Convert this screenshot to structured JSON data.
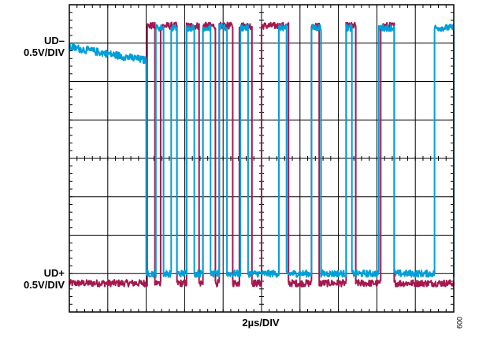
{
  "chart_data": {
    "type": "line",
    "title": "",
    "xlabel": "2µs/DIV",
    "ylabel": "",
    "grid": true,
    "divisions": {
      "x": 10,
      "y": 8
    },
    "x_range_us": [
      0,
      20
    ],
    "channels": [
      {
        "label_line1": "UD–",
        "label_line2": "0.5V/DIV",
        "color": "#009fd8"
      },
      {
        "label_line1": "UD+",
        "label_line2": "0.5V/DIV",
        "color": "#a4184e"
      }
    ],
    "series": [
      {
        "color": "#a4184e",
        "idle_level_div": 0.75,
        "high_level_div": 7.45,
        "transitions_us": [
          4.05,
          4.45,
          4.75,
          5.6,
          6.1,
          6.75,
          6.95,
          7.6,
          7.8,
          8.5,
          8.85,
          9.5,
          10.0,
          11.4,
          12.6,
          13.0,
          14.4,
          14.9,
          16.2,
          16.9
        ]
      },
      {
        "color": "#009fd8",
        "idle_level_div": 6.9,
        "high_level_div": 7.4,
        "low_level_div": 1.0,
        "transitions_us": [
          4.0,
          4.5,
          4.9,
          5.3,
          5.6,
          6.1,
          6.5,
          6.95,
          7.35,
          7.8,
          8.2,
          8.9,
          9.3,
          10.9,
          11.3,
          12.6,
          13.1,
          14.4,
          14.7,
          16.1,
          16.9,
          19.0,
          20.0
        ]
      }
    ],
    "code": "009"
  }
}
